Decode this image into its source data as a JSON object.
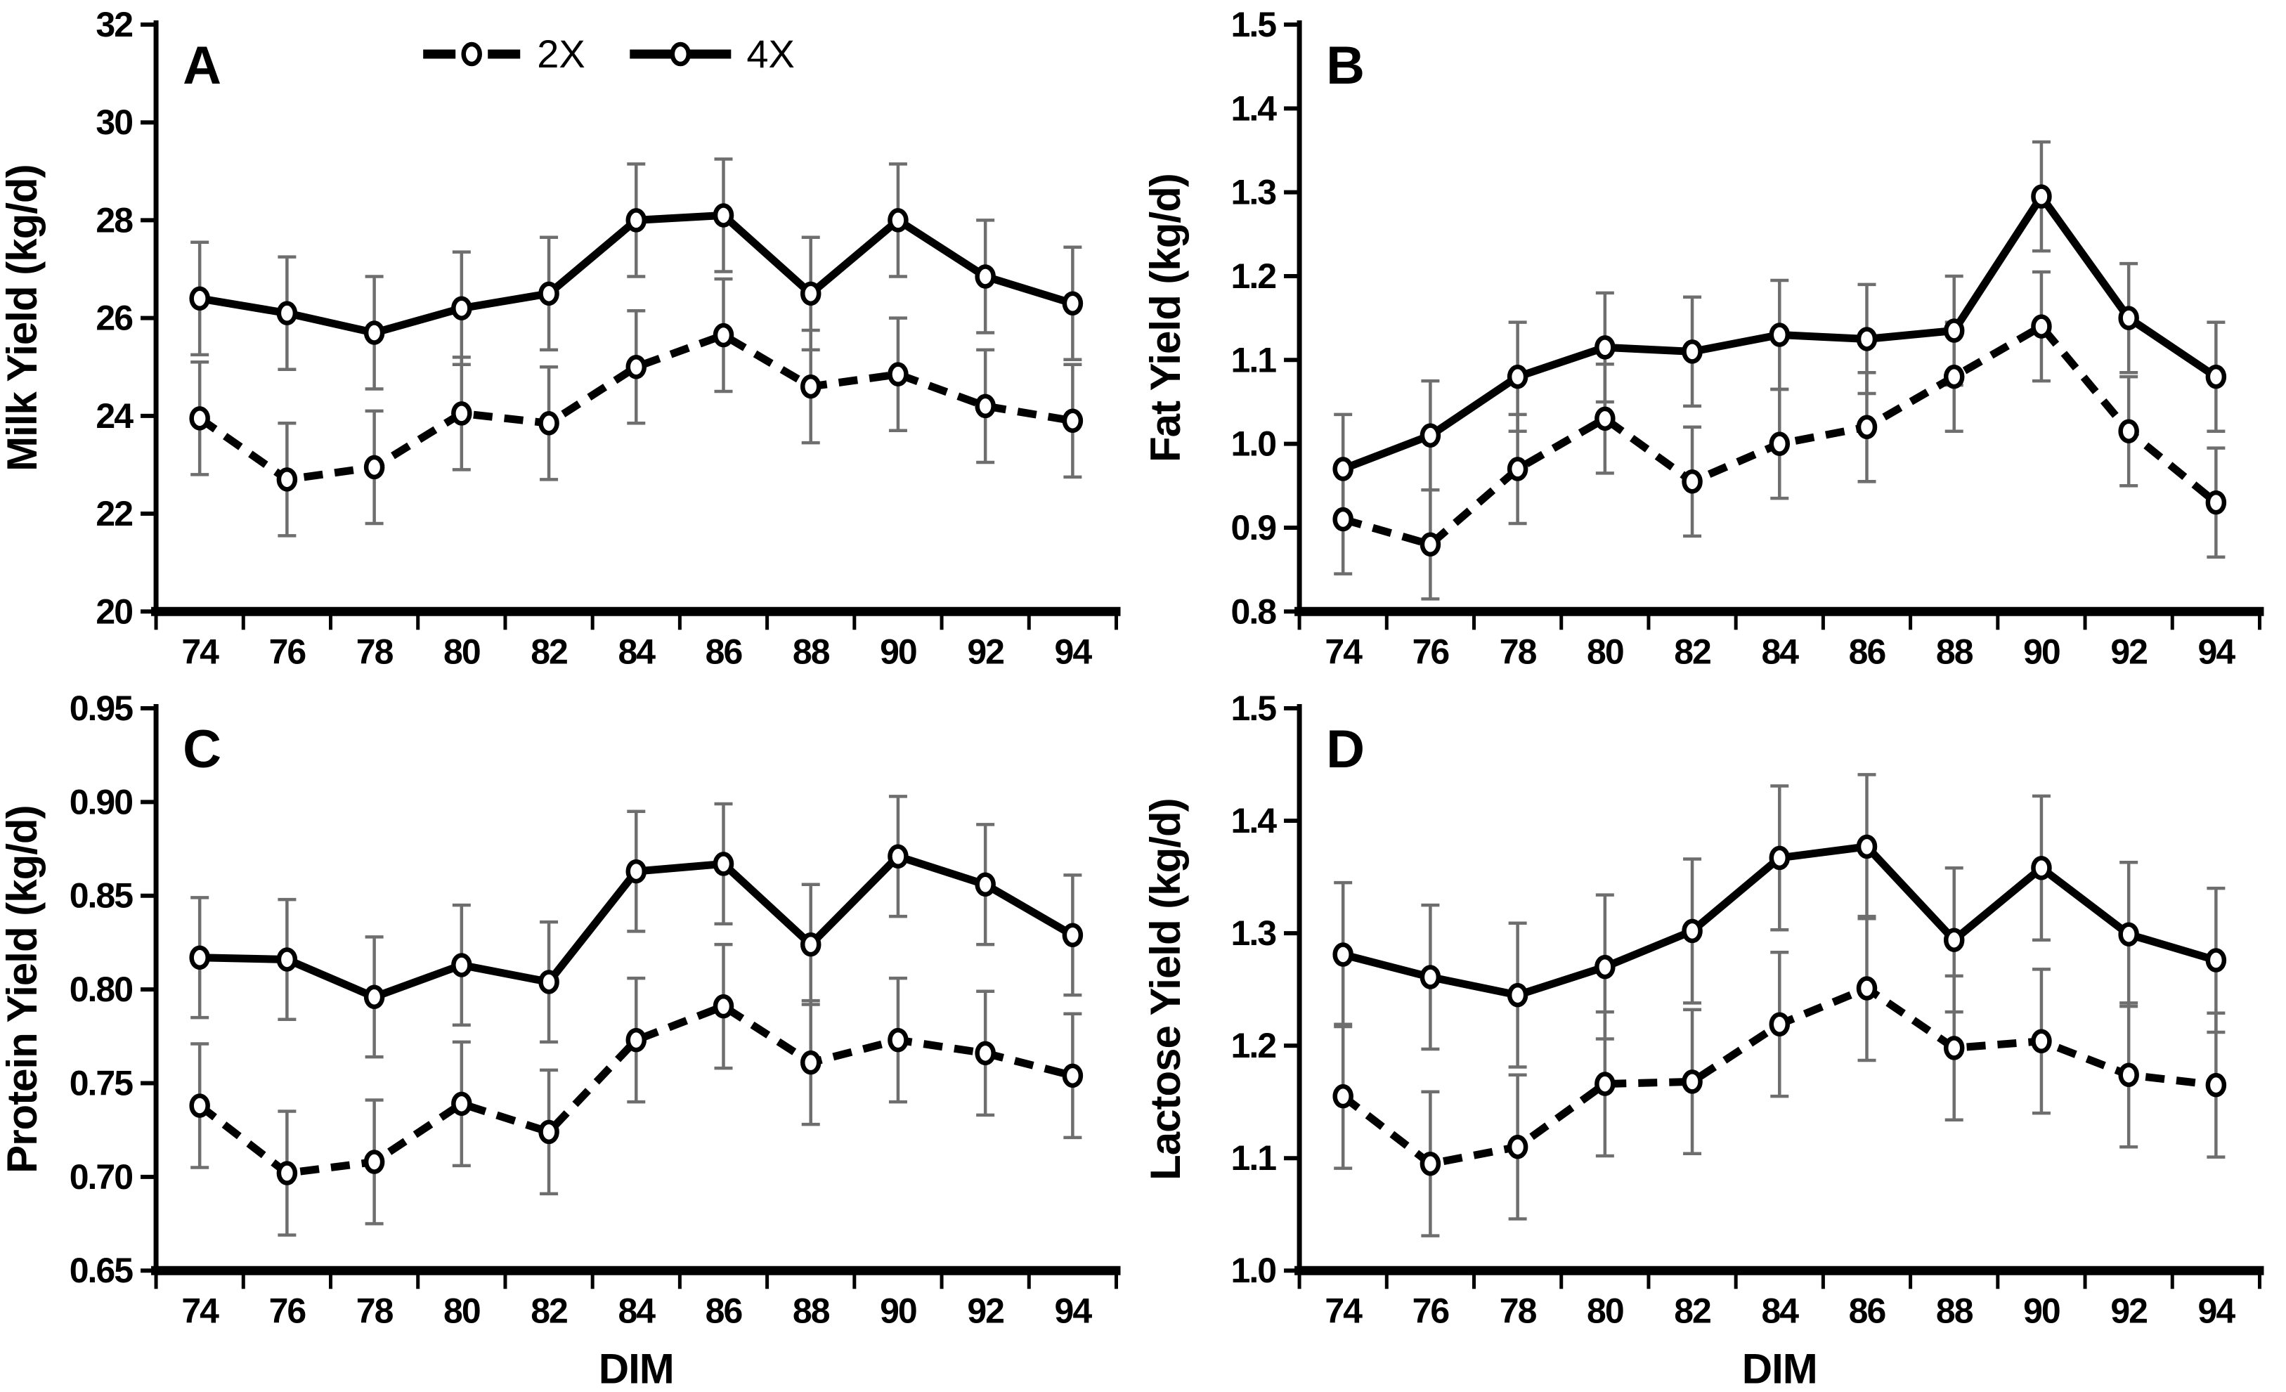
{
  "page": {
    "background": "#ffffff"
  },
  "colors": {
    "series": "#000000",
    "error_bar": "#6e6e6e",
    "marker_fill": "#ffffff",
    "text": "#000000"
  },
  "legend": {
    "items": [
      {
        "label": "2X",
        "line_style": "dashed",
        "marker": "open-circle"
      },
      {
        "label": "4X",
        "line_style": "solid",
        "marker": "open-circle"
      }
    ],
    "location": "top of panel A"
  },
  "chart_data": [
    {
      "id": "A",
      "type": "line",
      "panel_label": "A",
      "ylabel": "Milk Yield (kg/d)",
      "xlabel": "",
      "x": [
        74,
        76,
        78,
        80,
        82,
        84,
        86,
        88,
        90,
        92,
        94
      ],
      "ylim": [
        20,
        32
      ],
      "ytick_step": 2,
      "ytick_decimals": 0,
      "grid": false,
      "show_legend": true,
      "series": [
        {
          "name": "2X",
          "style": "dashed",
          "values": [
            23.95,
            22.7,
            22.95,
            24.05,
            23.85,
            25.0,
            25.65,
            24.6,
            24.85,
            24.2,
            23.9
          ],
          "error": 1.15
        },
        {
          "name": "4X",
          "style": "solid",
          "values": [
            26.4,
            26.1,
            25.7,
            26.2,
            26.5,
            28.0,
            28.1,
            26.5,
            28.0,
            26.85,
            26.3
          ],
          "error": 1.15
        }
      ]
    },
    {
      "id": "B",
      "type": "line",
      "panel_label": "B",
      "ylabel": "Fat Yield (kg/d)",
      "xlabel": "",
      "x": [
        74,
        76,
        78,
        80,
        82,
        84,
        86,
        88,
        90,
        92,
        94
      ],
      "ylim": [
        0.8,
        1.5
      ],
      "ytick_step": 0.1,
      "ytick_decimals": 1,
      "grid": false,
      "show_legend": false,
      "series": [
        {
          "name": "2X",
          "style": "dashed",
          "values": [
            0.91,
            0.88,
            0.97,
            1.03,
            0.955,
            1.0,
            1.02,
            1.08,
            1.14,
            1.015,
            0.93
          ],
          "error": 0.065
        },
        {
          "name": "4X",
          "style": "solid",
          "values": [
            0.97,
            1.01,
            1.08,
            1.115,
            1.11,
            1.13,
            1.125,
            1.135,
            1.295,
            1.15,
            1.08
          ],
          "error": 0.065
        }
      ]
    },
    {
      "id": "C",
      "type": "line",
      "panel_label": "C",
      "ylabel": "Protein Yield (kg/d)",
      "xlabel": "DIM",
      "x": [
        74,
        76,
        78,
        80,
        82,
        84,
        86,
        88,
        90,
        92,
        94
      ],
      "ylim": [
        0.65,
        0.95
      ],
      "ytick_step": 0.05,
      "ytick_decimals": 2,
      "grid": false,
      "show_legend": false,
      "series": [
        {
          "name": "2X",
          "style": "dashed",
          "values": [
            0.738,
            0.702,
            0.708,
            0.739,
            0.724,
            0.773,
            0.791,
            0.761,
            0.773,
            0.766,
            0.754
          ],
          "error": 0.033
        },
        {
          "name": "4X",
          "style": "solid",
          "values": [
            0.817,
            0.816,
            0.796,
            0.813,
            0.804,
            0.863,
            0.867,
            0.824,
            0.871,
            0.856,
            0.829
          ],
          "error": 0.032
        }
      ]
    },
    {
      "id": "D",
      "type": "line",
      "panel_label": "D",
      "ylabel": "Lactose Yield (kg/d)",
      "xlabel": "DIM",
      "x": [
        74,
        76,
        78,
        80,
        82,
        84,
        86,
        88,
        90,
        92,
        94
      ],
      "ylim": [
        1.0,
        1.5
      ],
      "ytick_step": 0.1,
      "ytick_decimals": 1,
      "grid": false,
      "show_legend": false,
      "series": [
        {
          "name": "2X",
          "style": "dashed",
          "values": [
            1.155,
            1.095,
            1.11,
            1.166,
            1.168,
            1.219,
            1.251,
            1.198,
            1.204,
            1.174,
            1.165
          ],
          "error": 0.064
        },
        {
          "name": "4X",
          "style": "solid",
          "values": [
            1.281,
            1.261,
            1.245,
            1.27,
            1.302,
            1.367,
            1.377,
            1.294,
            1.358,
            1.299,
            1.276
          ],
          "error": 0.064
        }
      ]
    }
  ]
}
